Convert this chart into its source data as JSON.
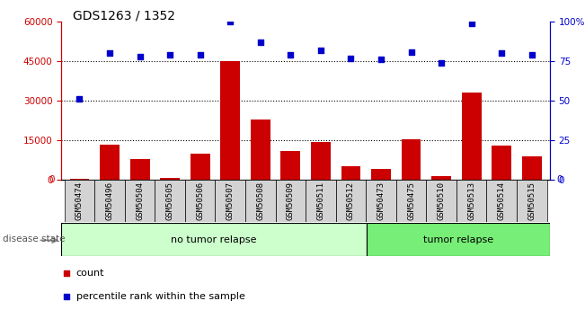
{
  "title": "GDS1263 / 1352",
  "samples": [
    "GSM50474",
    "GSM50496",
    "GSM50504",
    "GSM50505",
    "GSM50506",
    "GSM50507",
    "GSM50508",
    "GSM50509",
    "GSM50511",
    "GSM50512",
    "GSM50473",
    "GSM50475",
    "GSM50510",
    "GSM50513",
    "GSM50514",
    "GSM50515"
  ],
  "counts": [
    400,
    13500,
    8000,
    700,
    10000,
    45000,
    23000,
    11000,
    14500,
    5000,
    4000,
    15500,
    1500,
    33000,
    13000,
    9000
  ],
  "percentiles": [
    51,
    80,
    78,
    79,
    79,
    100,
    87,
    79,
    82,
    77,
    76,
    81,
    74,
    99,
    80,
    79
  ],
  "group_labels": [
    "no tumor relapse",
    "tumor relapse"
  ],
  "group_sizes": [
    10,
    6
  ],
  "group_colors": [
    "#ccffcc",
    "#77ee77"
  ],
  "bar_color": "#cc0000",
  "dot_color": "#0000cc",
  "ylim_left": [
    0,
    60000
  ],
  "ylim_right": [
    0,
    100
  ],
  "yticks_left": [
    0,
    15000,
    30000,
    45000,
    60000
  ],
  "yticks_right": [
    0,
    25,
    50,
    75,
    100
  ],
  "grid_values": [
    15000,
    30000,
    45000
  ],
  "disease_state_label": "disease state",
  "legend_count_label": "count",
  "legend_percentile_label": "percentile rank within the sample",
  "xtick_bg_color": "#d3d3d3",
  "left_axis_color": "#cc0000",
  "right_axis_color": "#0000cc"
}
